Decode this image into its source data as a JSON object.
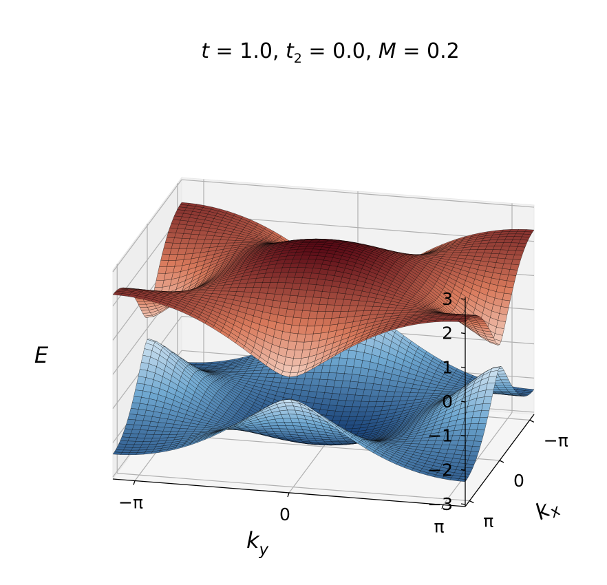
{
  "chart_data": {
    "type": "surface3d",
    "title_parts": {
      "t_symbol": "t",
      "t_value": "1.0",
      "t2_symbol": "t",
      "t2_sub": "2",
      "t2_value": "0.0",
      "M_symbol": "M",
      "M_value": "0.2"
    },
    "params": {
      "t": 1.0,
      "t2": 0.0,
      "M": 0.2
    },
    "xlabel": "k",
    "xlabel_sub": "x",
    "ylabel": "k",
    "ylabel_sub": "y",
    "zlabel": "E",
    "x_ticks": [
      "−π",
      "0",
      "π"
    ],
    "y_ticks": [
      "−π",
      "0",
      "π"
    ],
    "z_ticks": [
      "3",
      "2",
      "1",
      "0",
      "−1",
      "−2",
      "−3"
    ],
    "x_range": [
      -3.1416,
      3.1416
    ],
    "y_range": [
      -3.1416,
      3.1416
    ],
    "zlim": [
      -3,
      3
    ],
    "grid": true,
    "bands": [
      {
        "name": "",
        "colormap": "Reds",
        "color_low": "#fbe7dc",
        "color_mid": "#d97a5c",
        "color_high": "#5a0b16"
      },
      {
        "name": "",
        "colormap": "Blues_r",
        "color_low": "#153d73",
        "color_mid": "#6fa8d1",
        "color_high": "#eef5fb"
      }
    ],
    "colors": {
      "pane": "#f2f2f2",
      "grid": "#b0b0b0",
      "mesh": "#000000"
    }
  }
}
